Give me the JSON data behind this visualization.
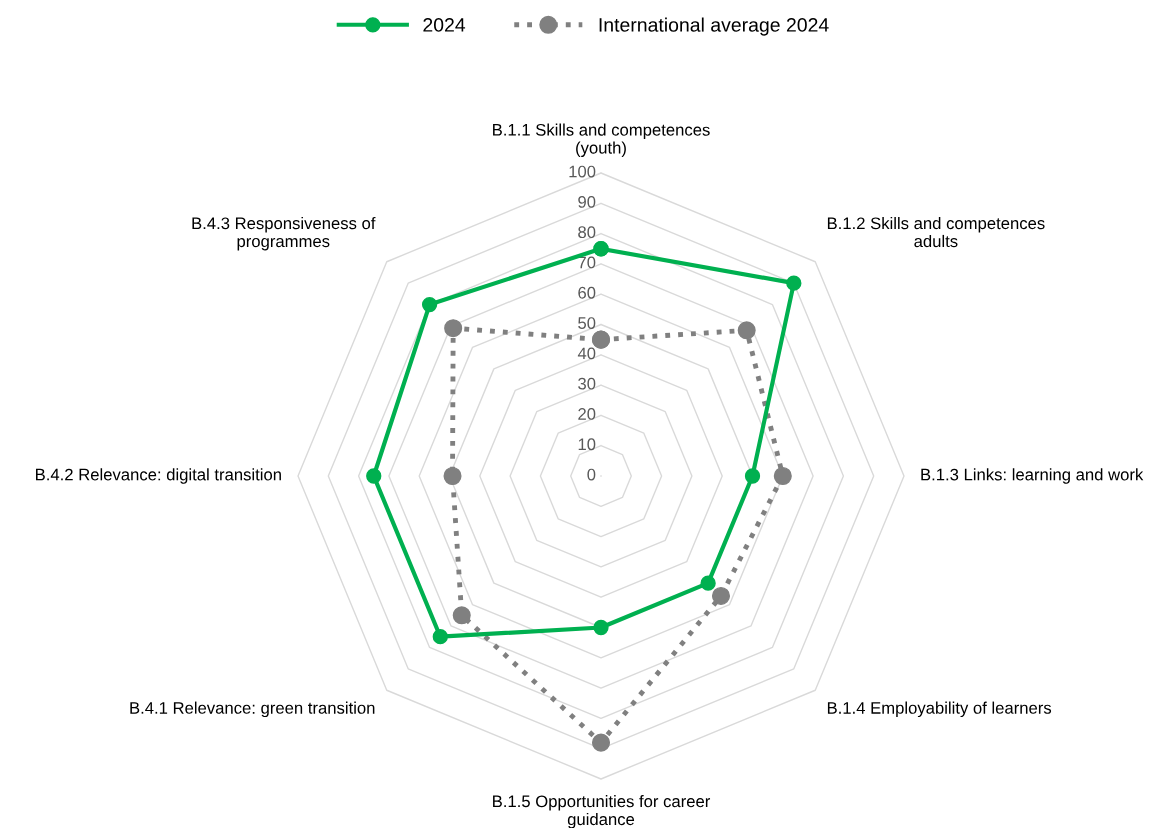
{
  "chart_data": {
    "type": "radar",
    "categories": [
      "B.1.1 Skills and competences\n(youth)",
      "B.1.2 Skills and competences\nadults",
      "B.1.3 Links: learning and work",
      "B.1.4 Employability of learners",
      "B.1.5 Opportunities for career\nguidance",
      "B.4.1 Relevance: green transition",
      "B.4.2 Relevance: digital transition",
      "B.4.3 Responsiveness of\nprogrammes"
    ],
    "series": [
      {
        "name": "2024",
        "color": "#00b050",
        "line_style": "solid",
        "values": [
          75,
          90,
          50,
          50,
          50,
          75,
          75,
          80
        ]
      },
      {
        "name": "International average 2024",
        "color": "#808080",
        "line_style": "dotted",
        "values": [
          45,
          68,
          60,
          56,
          88,
          65,
          49,
          69
        ]
      }
    ],
    "ylim": [
      0,
      100
    ],
    "yticks": [
      0,
      10,
      20,
      30,
      40,
      50,
      60,
      70,
      80,
      90,
      100
    ],
    "grid": true,
    "legend": "top",
    "marker": "circle"
  }
}
